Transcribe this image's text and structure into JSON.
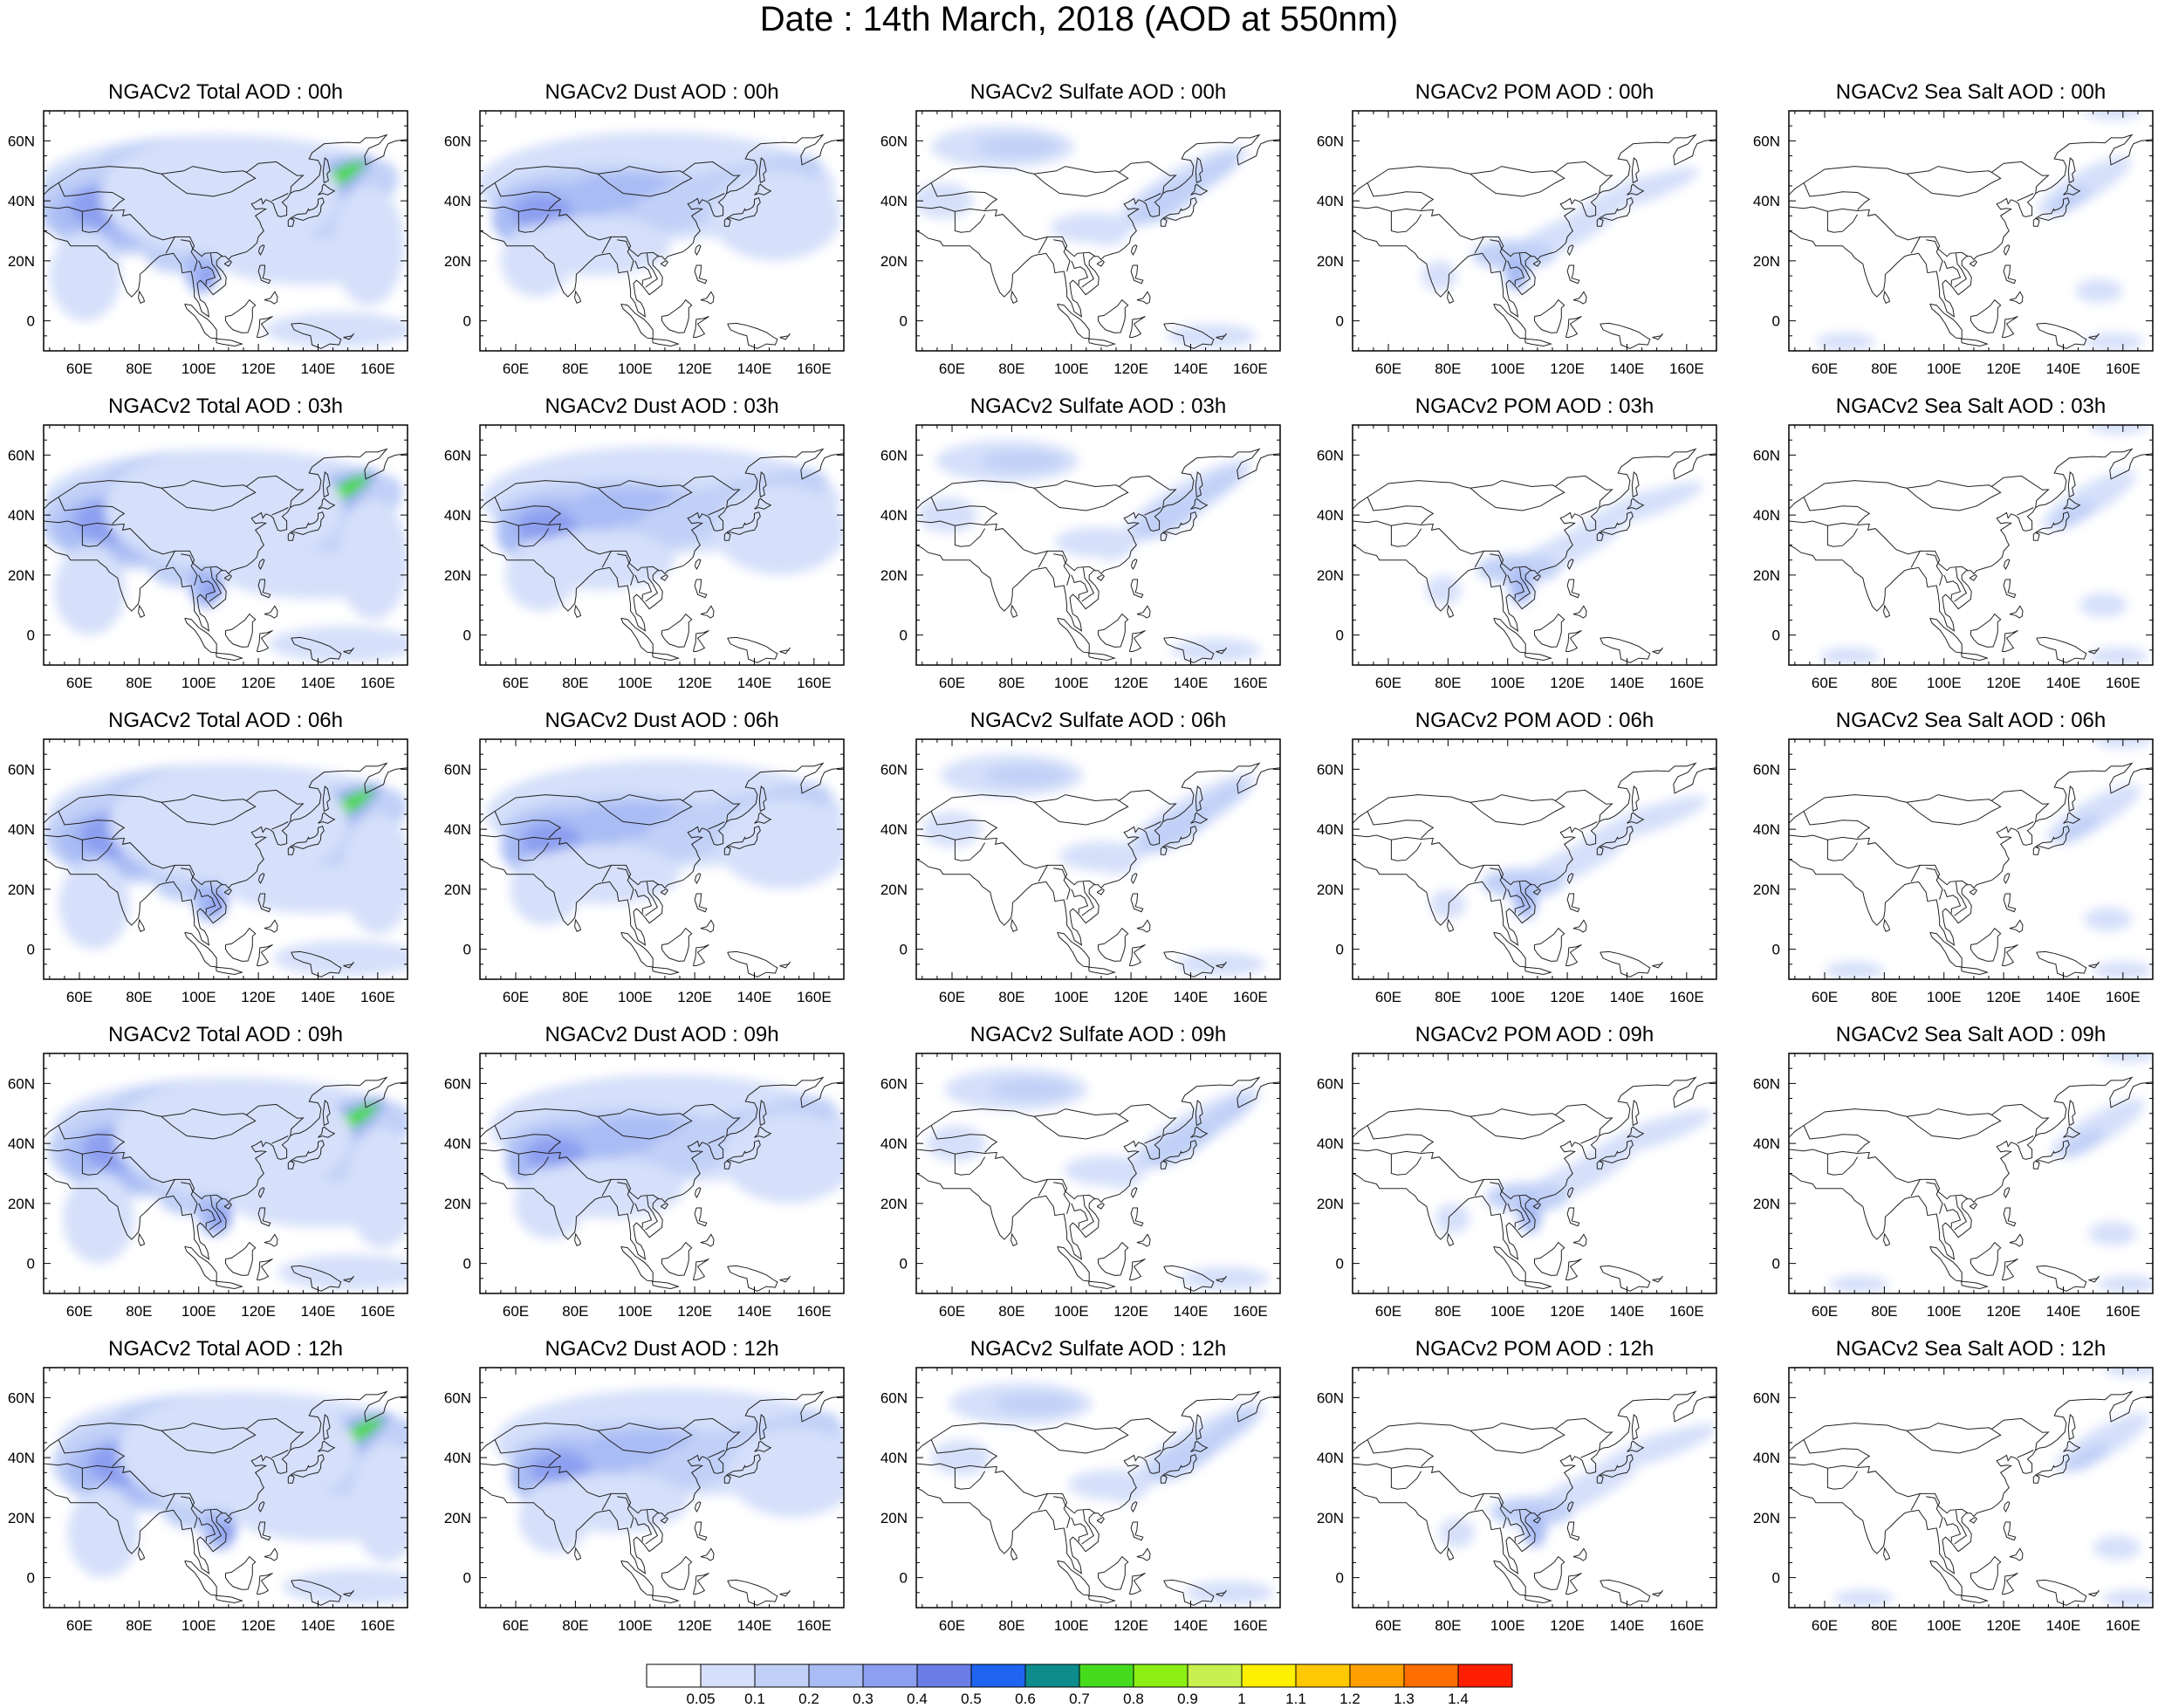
{
  "title": "Date : 14th March, 2018 (AOD at 550nm)",
  "map_extent": {
    "lon_min": 48,
    "lon_max": 170,
    "lat_min": -10,
    "lat_max": 70
  },
  "lon_ticks": [
    "60E",
    "80E",
    "100E",
    "120E",
    "140E",
    "160E"
  ],
  "lat_ticks": [
    "60N",
    "40N",
    "20N",
    "0"
  ],
  "rows": [
    {
      "hour": "00h",
      "titles": [
        "NGACv2 Total AOD : 00h",
        "NGACv2 Dust AOD : 00h",
        "NGACv2 Sulfate AOD : 00h",
        "NGACv2 POM AOD : 00h",
        "NGACv2 Sea Salt AOD : 00h"
      ]
    },
    {
      "hour": "03h",
      "titles": [
        "NGACv2 Total AOD : 03h",
        "NGACv2 Dust AOD : 03h",
        "NGACv2 Sulfate AOD : 03h",
        "NGACv2 POM AOD : 03h",
        "NGACv2 Sea Salt AOD : 03h"
      ]
    },
    {
      "hour": "06h",
      "titles": [
        "NGACv2 Total AOD : 06h",
        "NGACv2 Dust AOD : 06h",
        "NGACv2 Sulfate AOD : 06h",
        "NGACv2 POM AOD : 06h",
        "NGACv2 Sea Salt AOD : 06h"
      ]
    },
    {
      "hour": "09h",
      "titles": [
        "NGACv2 Total AOD : 09h",
        "NGACv2 Dust AOD : 09h",
        "NGACv2 Sulfate AOD : 09h",
        "NGACv2 POM AOD : 09h",
        "NGACv2 Sea Salt  AOD : 09h"
      ]
    },
    {
      "hour": "12h",
      "titles": [
        "NGACv2 Total AOD  : 12h",
        "NGACv2 Dust AOD : 12h",
        "NGACv2 Sulfate AOD : 12h",
        "NGACv2 POM  AOD : 12h",
        "NGACv2 Sea Salt  AOD : 12h"
      ]
    }
  ],
  "colorbar": {
    "labels": [
      "0.05",
      "0.1",
      "0.2",
      "0.3",
      "0.4",
      "0.5",
      "0.6",
      "0.7",
      "0.8",
      "0.9",
      "1",
      "1.1",
      "1.2",
      "1.3",
      "1.4"
    ],
    "colors": [
      "#ffffff",
      "#d6e0fa",
      "#c1d0f7",
      "#a9bcf4",
      "#8d9ff0",
      "#6b7ee8",
      "#1e64f0",
      "#0e8c8c",
      "#46dc1e",
      "#8cf014",
      "#c8f050",
      "#fff000",
      "#ffc800",
      "#ffa000",
      "#ff6e00",
      "#ff1e00"
    ]
  },
  "aerosol_types": [
    "total",
    "dust",
    "sulfate",
    "pom",
    "seasalt"
  ]
}
